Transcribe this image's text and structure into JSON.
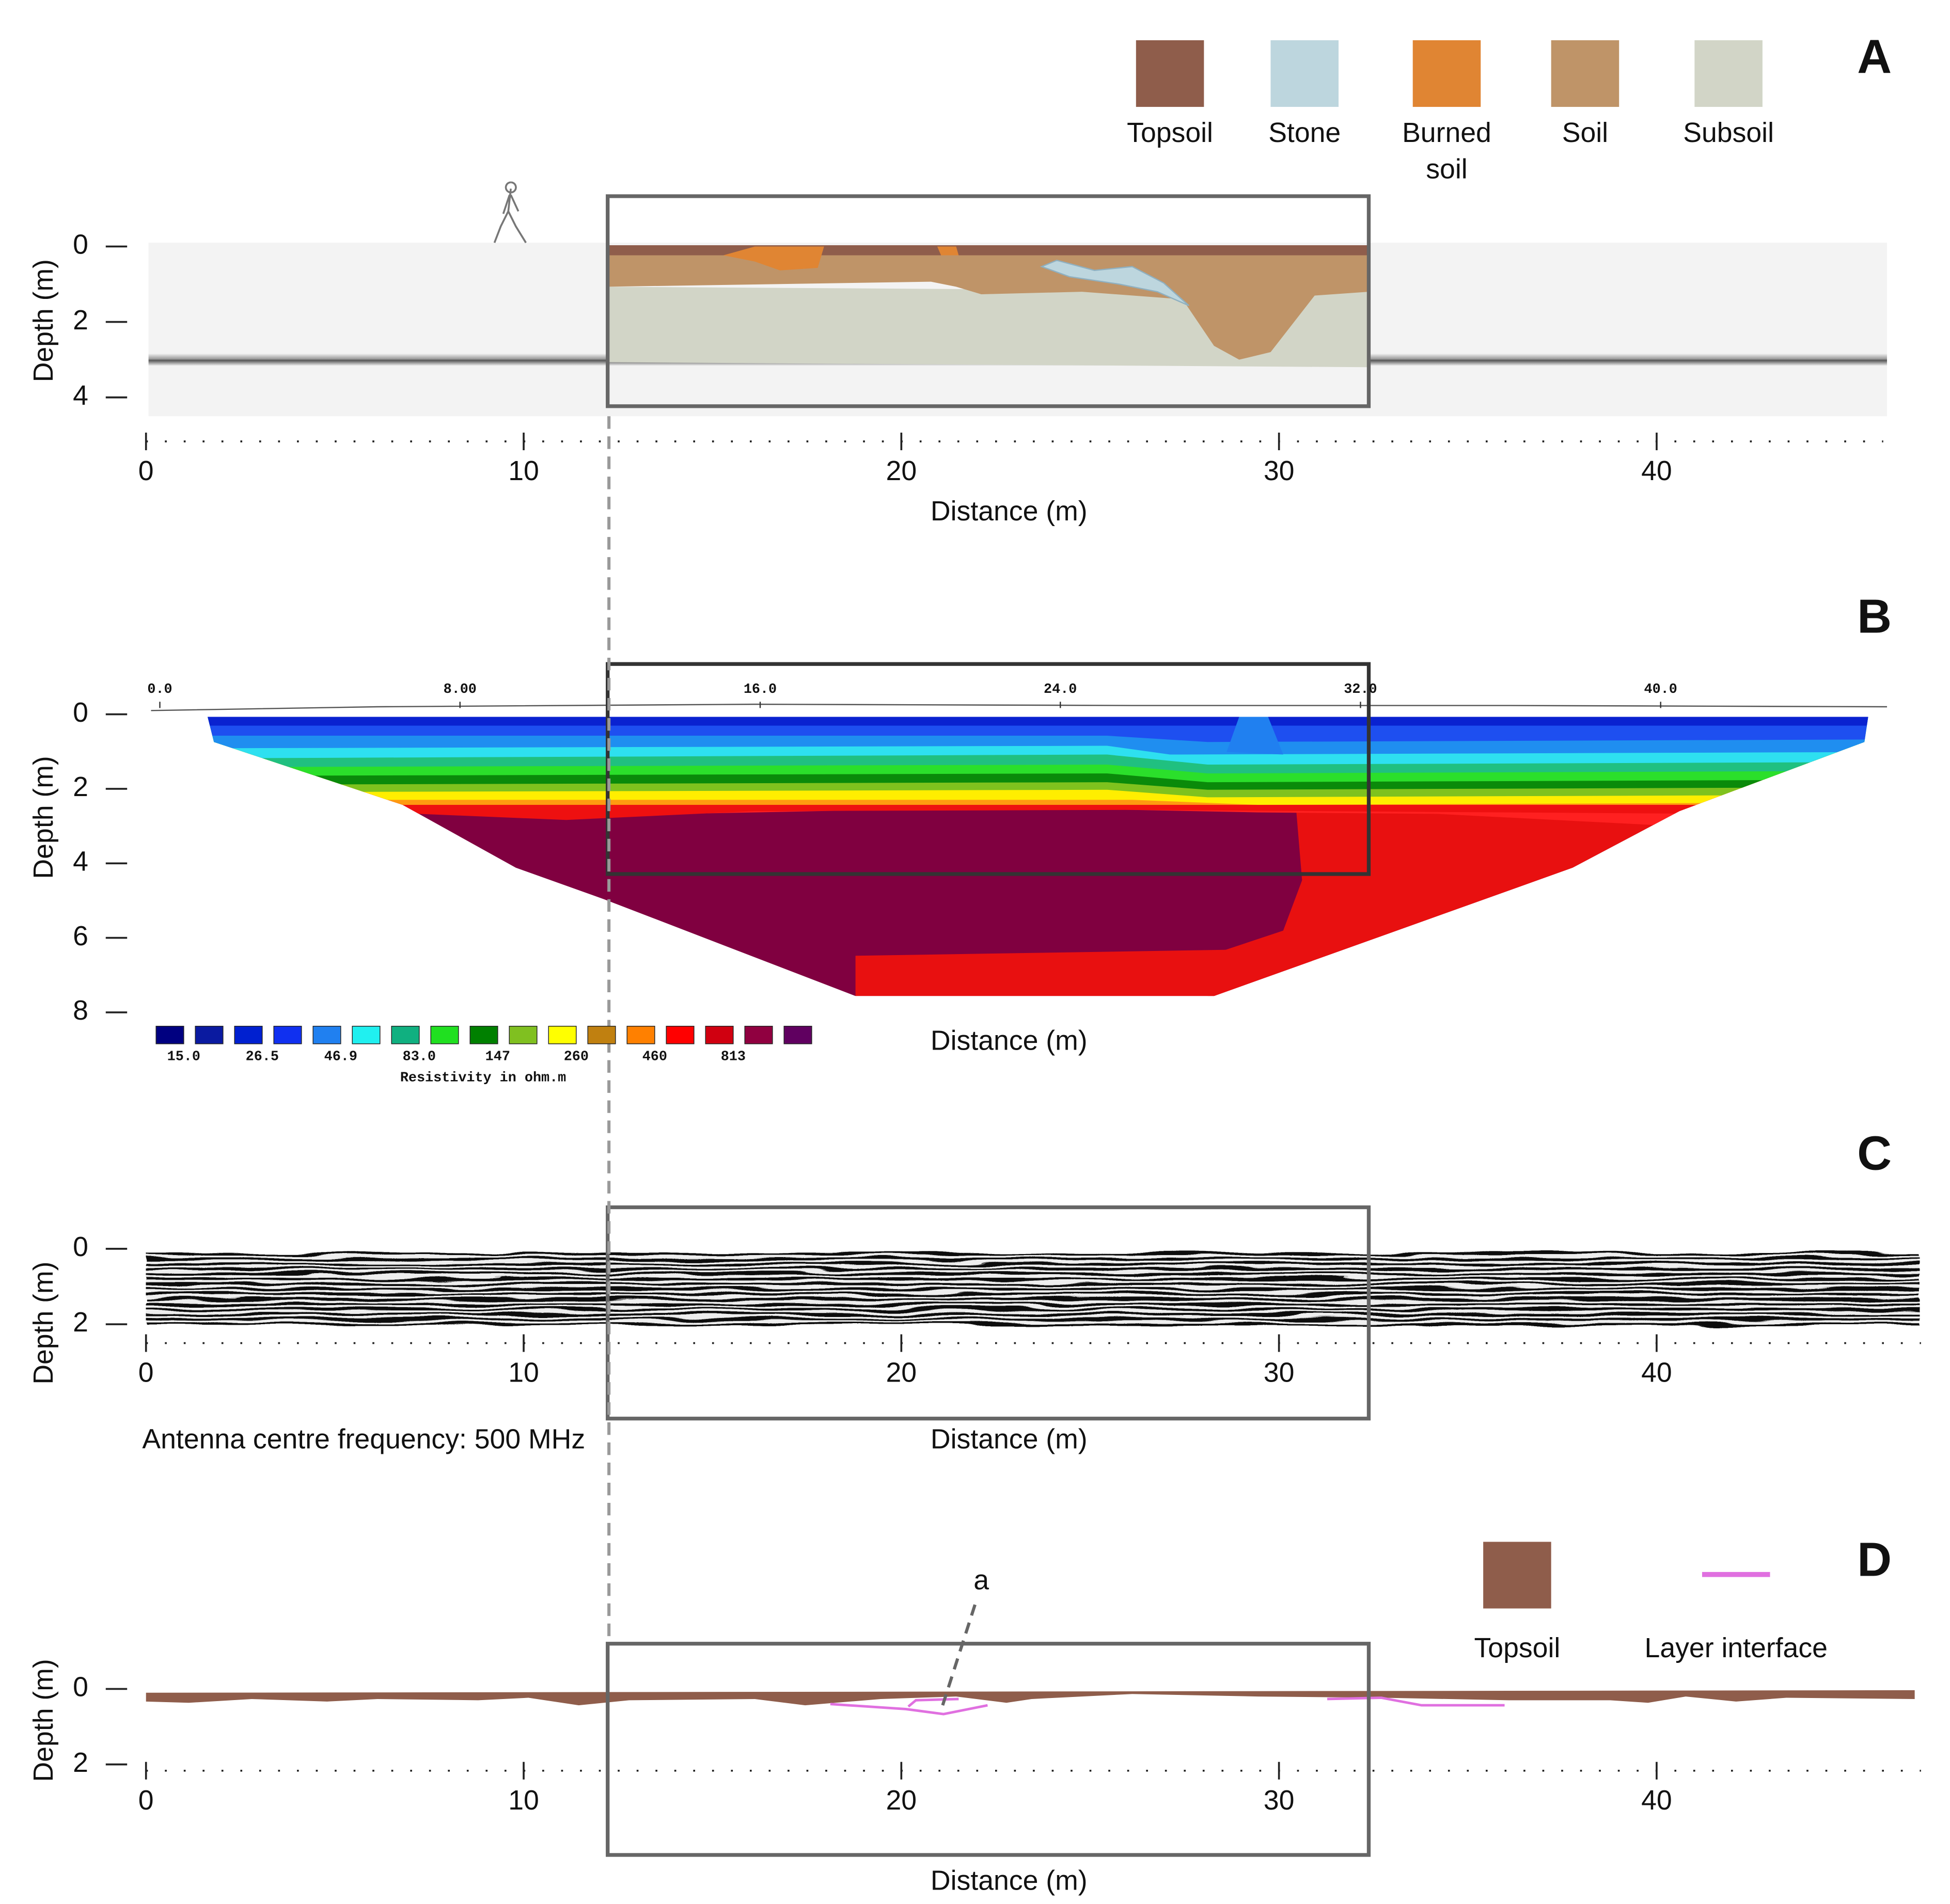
{
  "panels": [
    {
      "label": "A",
      "legend": [
        {
          "lines": [
            "Topsoil"
          ],
          "color": "#8f5d4b"
        },
        {
          "lines": [
            "Stone"
          ],
          "color": "#bdd6de"
        },
        {
          "lines": [
            "Burned",
            "soil"
          ],
          "color": "#e08533"
        },
        {
          "lines": [
            "Soil"
          ],
          "color": "#bf9468"
        },
        {
          "lines": [
            "Subsoil"
          ],
          "color": "#d2d5c7"
        }
      ],
      "y_label": "Depth (m)",
      "x_label": "Distance (m)",
      "xlim": [
        0,
        46
      ],
      "xticks": [
        0,
        10,
        20,
        30,
        40
      ],
      "ylim": [
        0,
        4.5
      ],
      "yticks": [
        0,
        2,
        4
      ]
    },
    {
      "label": "B",
      "y_label": "Depth (m)",
      "x_label": "Distance (m)",
      "xlim": [
        0,
        46
      ],
      "top_xticks": [
        {
          "value": 0,
          "label": "0.0"
        },
        {
          "value": 8,
          "label": "8.00"
        },
        {
          "value": 16,
          "label": "16.0"
        },
        {
          "value": 24,
          "label": "24.0"
        },
        {
          "value": 32,
          "label": "32.0"
        },
        {
          "value": 40,
          "label": "40.0"
        }
      ],
      "ylim": [
        0,
        8
      ],
      "yticks": [
        0,
        2,
        4,
        6,
        8
      ],
      "colorbar": {
        "colors": [
          "#000080",
          "#0a1aa0",
          "#0020d0",
          "#1030f0",
          "#2080f0",
          "#20f0f0",
          "#10b080",
          "#20e020",
          "#008000",
          "#80c020",
          "#ffff00",
          "#c08010",
          "#ff8000",
          "#ff0000",
          "#d00010",
          "#900040",
          "#600060"
        ],
        "labels": [
          "15.0",
          "26.5",
          "46.9",
          "83.0",
          "147",
          "260",
          "460",
          "813"
        ],
        "title": "Resistivity in ohm.m"
      }
    },
    {
      "label": "C",
      "y_label": "Depth (m)",
      "x_label": "Distance (m)",
      "xlim": [
        0,
        47
      ],
      "xticks": [
        0,
        10,
        20,
        30,
        40
      ],
      "ylim": [
        0,
        2
      ],
      "yticks": [
        0,
        2
      ],
      "note": "Antenna centre frequency: 500 MHz"
    },
    {
      "label": "D",
      "legend": [
        {
          "lines": [
            "Topsoil"
          ],
          "color": "#8f5d4b"
        },
        {
          "lines": [
            "Layer interface"
          ],
          "color": "#e070e0"
        }
      ],
      "annotation": "a",
      "y_label": "Depth (m)",
      "x_label": "Distance (m)",
      "xlim": [
        0,
        47
      ],
      "xticks": [
        0,
        10,
        20,
        30,
        40
      ],
      "ylim": [
        0,
        2
      ],
      "yticks": [
        0,
        2
      ]
    }
  ]
}
